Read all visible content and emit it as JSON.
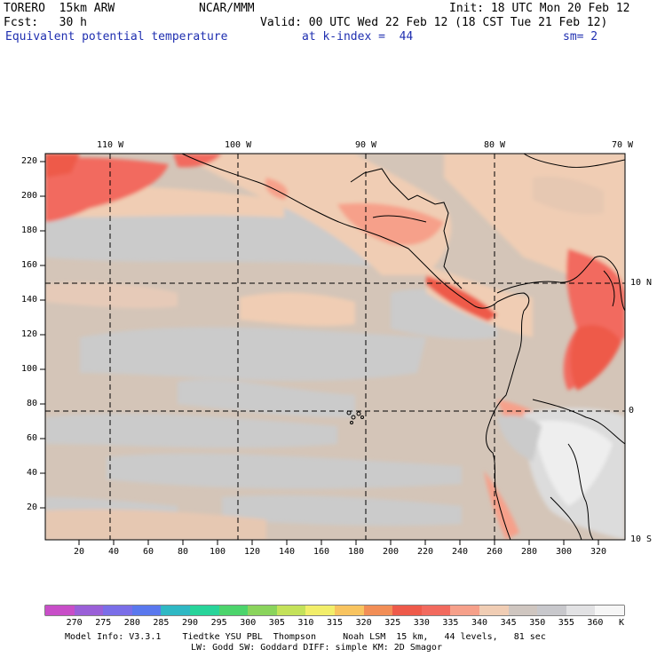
{
  "header": {
    "model": "TORERO  15km ARW",
    "org": "NCAR/MMM",
    "init": "Init: 18 UTC Mon 20 Feb 12",
    "fcst": "Fcst:   30 h",
    "valid": "Valid: 00 UTC Wed 22 Feb 12 (18 CST Tue 21 Feb 12)",
    "field": "Equivalent potential temperature",
    "level": "at k-index =  44",
    "smooth": "sm= 2"
  },
  "map": {
    "top_labels": [
      "110 W",
      "100 W",
      "90 W",
      "80 W",
      "70 W"
    ],
    "right_labels": [
      "10 N",
      "0",
      "10 S"
    ],
    "y_ticks": [
      "220",
      "200",
      "180",
      "160",
      "140",
      "120",
      "100",
      "80",
      "60",
      "40",
      "20"
    ],
    "x_ticks": [
      "20",
      "40",
      "60",
      "80",
      "100",
      "120",
      "140",
      "160",
      "180",
      "200",
      "220",
      "240",
      "260",
      "280",
      "300",
      "320"
    ]
  },
  "colorbar": {
    "labels": [
      "270",
      "275",
      "280",
      "285",
      "290",
      "295",
      "300",
      "305",
      "310",
      "315",
      "320",
      "325",
      "330",
      "335",
      "340",
      "345",
      "350",
      "355",
      "360"
    ],
    "unit": "K",
    "colors": [
      "#c84ec8",
      "#9a60d8",
      "#7a6ee8",
      "#5a78ee",
      "#2fb8c4",
      "#28d49a",
      "#4cd46c",
      "#8ad45c",
      "#c4e25a",
      "#f2ee6a",
      "#f8c460",
      "#f28e56",
      "#ee5a4a",
      "#f26a5e",
      "#f6a08a",
      "#f0cdb4",
      "#cfc6c0",
      "#c8c8cc",
      "#e2e2e4",
      "#f6f6f6"
    ]
  },
  "footer": {
    "line1": "Model Info: V3.3.1    Tiedtke YSU PBL  Thompson     Noah LSM  15 km,   44 levels,   81 sec",
    "line2": "LW: Godd SW: Goddard DIFF: simple KM: 2D Smagor"
  }
}
